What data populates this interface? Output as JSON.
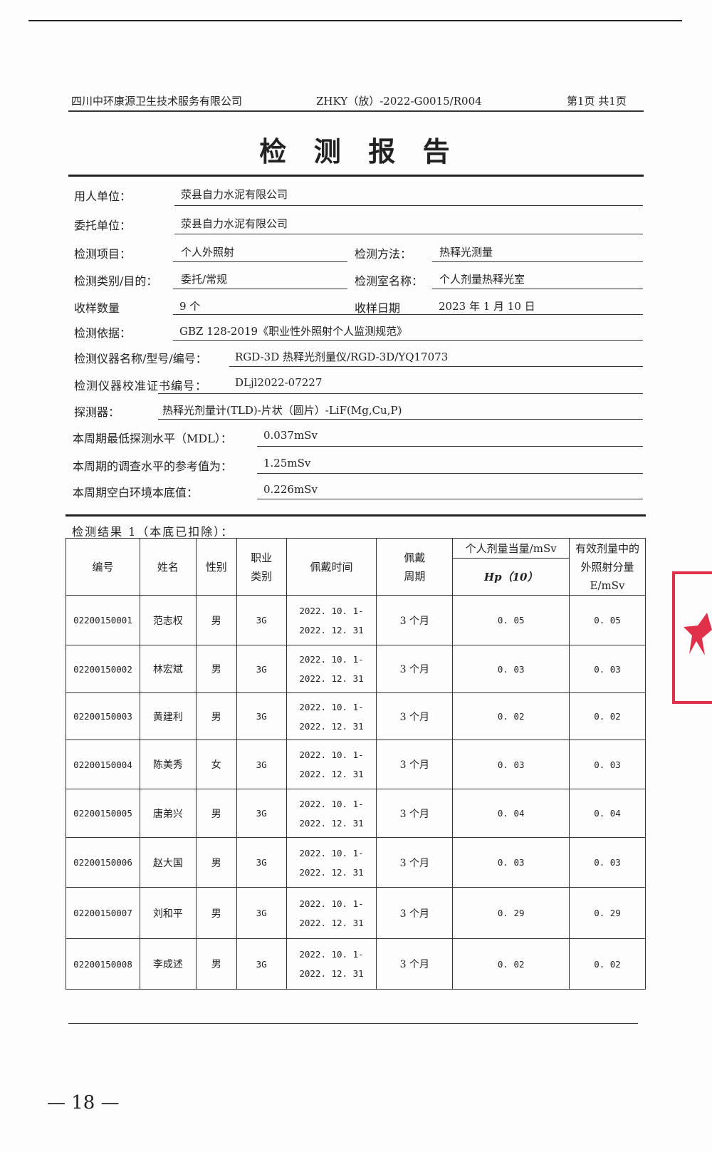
{
  "header": {
    "company": "四川中环康源卫生技术服务有限公司",
    "report_no": "ZHKY（放）-2022-G0015/R004",
    "page_info": "第1页  共1页"
  },
  "title": "检  测  报  告",
  "fields": {
    "client_unit": {
      "label": "用人单位：",
      "value": "荥县自力水泥有限公司"
    },
    "entrust_unit": {
      "label": "委托单位：",
      "value": "荥县自力水泥有限公司"
    },
    "item": {
      "label": "检测项目：",
      "value": "个人外照射"
    },
    "method": {
      "label": "检测方法：",
      "value": "热释光测量"
    },
    "category": {
      "label": "检测类别/目的：",
      "value": "委托/常规"
    },
    "lab": {
      "label": "检测室名称：",
      "value": "个人剂量热释光室"
    },
    "sample_count": {
      "label": "收样数量",
      "value": "9 个"
    },
    "sample_date": {
      "label": "收样日期",
      "value": "2023 年 1 月 10 日"
    },
    "basis": {
      "label": "检测依据：",
      "value": "GBZ 128-2019《职业性外照射个人监测规范》"
    },
    "instrument": {
      "label": "检测仪器名称/型号/编号：",
      "value": "RGD-3D 热释光剂量仪/RGD-3D/YQ17073"
    },
    "cert": {
      "label": "检测仪器校准证书编号：",
      "value": "DLjl2022-07227"
    },
    "detector": {
      "label": "探测器：",
      "value": "热释光剂量计(TLD)-片状（圆片）-LiF(Mg,Cu,P)"
    },
    "mdl": {
      "label": "本周期最低探测水平（MDL）：",
      "value": "0.037mSv"
    },
    "investigation": {
      "label": "本周期的调查水平的参考值为：",
      "value": "1.25mSv"
    },
    "background": {
      "label": "本周期空白环境本底值：",
      "value": "0.226mSv"
    }
  },
  "results": {
    "caption": "检测结果 1（本底已扣除）：",
    "headers": {
      "id": "编号",
      "name": "姓名",
      "sex": "性别",
      "job": "职业类别",
      "period": "佩戴时间",
      "cycle": "佩戴周期",
      "dose_group": "个人剂量当量/mSv",
      "hp": "Hp（10）",
      "effective": "有效剂量中的外照射分量 E/mSv"
    },
    "rows": [
      {
        "id": "02200150001",
        "name": "范志权",
        "sex": "男",
        "job": "3G",
        "start": "2022. 10. 1-",
        "end": "2022. 12. 31",
        "cycle": "3 个月",
        "hp": "0. 05",
        "e": "0. 05"
      },
      {
        "id": "02200150002",
        "name": "林宏斌",
        "sex": "男",
        "job": "3G",
        "start": "2022. 10. 1-",
        "end": "2022. 12. 31",
        "cycle": "3 个月",
        "hp": "0. 03",
        "e": "0. 03"
      },
      {
        "id": "02200150003",
        "name": "黄建利",
        "sex": "男",
        "job": "3G",
        "start": "2022. 10. 1-",
        "end": "2022. 12. 31",
        "cycle": "3 个月",
        "hp": "0. 02",
        "e": "0. 02"
      },
      {
        "id": "02200150004",
        "name": "陈美秀",
        "sex": "女",
        "job": "3G",
        "start": "2022. 10. 1-",
        "end": "2022. 12. 31",
        "cycle": "3 个月",
        "hp": "0. 03",
        "e": "0. 03"
      },
      {
        "id": "02200150005",
        "name": "唐弟兴",
        "sex": "男",
        "job": "3G",
        "start": "2022. 10. 1-",
        "end": "2022. 12. 31",
        "cycle": "3 个月",
        "hp": "0. 04",
        "e": "0. 04"
      },
      {
        "id": "02200150006",
        "name": "赵大国",
        "sex": "男",
        "job": "3G",
        "start": "2022. 10. 1-",
        "end": "2022. 12. 31",
        "cycle": "3 个月",
        "hp": "0. 03",
        "e": "0. 03"
      },
      {
        "id": "02200150007",
        "name": "刘和平",
        "sex": "男",
        "job": "3G",
        "start": "2022. 10. 1-",
        "end": "2022. 12. 31",
        "cycle": "3 个月",
        "hp": "0. 29",
        "e": "0. 29"
      },
      {
        "id": "02200150008",
        "name": "李成述",
        "sex": "男",
        "job": "3G",
        "start": "2022. 10. 1-",
        "end": "2022. 12. 31",
        "cycle": "3 个月",
        "hp": "0. 02",
        "e": "0. 02"
      }
    ]
  },
  "page_number": "— 18 —",
  "stamp_color": "#e0304a"
}
